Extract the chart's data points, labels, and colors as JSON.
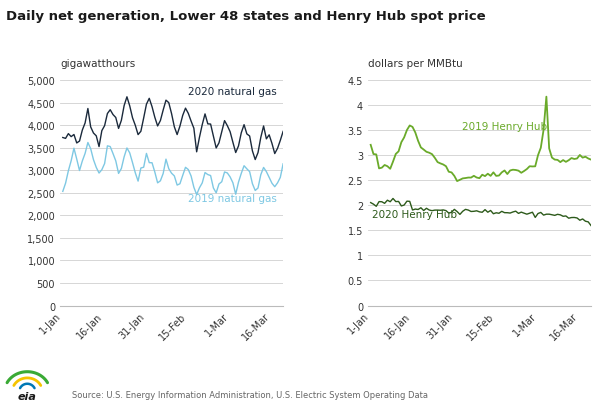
{
  "title": "Daily net generation, Lower 48 states and Henry Hub spot price",
  "left_ylabel": "gigawatthours",
  "right_ylabel": "dollars per MMBtu",
  "source": "Source: U.S. Energy Information Administration, U.S. Electric System Operating Data",
  "left_ylim": [
    0,
    5000
  ],
  "left_yticks": [
    0,
    500,
    1000,
    1500,
    2000,
    2500,
    3000,
    3500,
    4000,
    4500,
    5000
  ],
  "right_ylim": [
    0,
    4.5
  ],
  "right_yticks": [
    0,
    0.5,
    1,
    1.5,
    2,
    2.5,
    3,
    3.5,
    4,
    4.5
  ],
  "xtick_labels": [
    "1-Jan",
    "16-Jan",
    "31-Jan",
    "15-Feb",
    "1-Mar",
    "16-Mar"
  ],
  "color_2020_gas": "#1b2a3c",
  "color_2019_gas": "#7ec8e3",
  "color_2019_hub": "#6aaa2a",
  "color_2020_hub": "#2d5a1b",
  "label_2020_gas": "2020 natural gas",
  "label_2019_gas": "2019 natural gas",
  "label_2019_hub": "2019 Henry Hub",
  "label_2020_hub": "2020 Henry Hub",
  "background_color": "#ffffff",
  "grid_color": "#d0d0d0",
  "title_color": "#1a1a1a",
  "axis_label_color": "#333333",
  "tick_color": "#333333"
}
